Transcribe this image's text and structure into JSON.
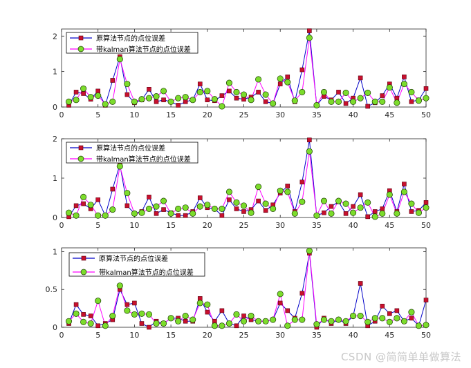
{
  "watermark": "CSDN @简简单单做算法",
  "colors": {
    "series_a_line": "#0000c8",
    "series_a_marker": "#c8102e",
    "series_b_line": "#ff00ff",
    "series_b_marker": "#7cdc2c",
    "axis": "#262626",
    "legend_box": "#000000"
  },
  "chart_data": [
    {
      "type": "line",
      "x": [
        1,
        2,
        3,
        4,
        5,
        6,
        7,
        8,
        9,
        10,
        11,
        12,
        13,
        14,
        15,
        16,
        17,
        18,
        19,
        20,
        21,
        22,
        23,
        24,
        25,
        26,
        27,
        28,
        29,
        30,
        31,
        32,
        33,
        34,
        35,
        36,
        37,
        38,
        39,
        40,
        41,
        42,
        43,
        44,
        45,
        46,
        47,
        48,
        49,
        50
      ],
      "xlim": [
        0,
        50
      ],
      "ylim": [
        0,
        2.2
      ],
      "xticks": [
        0,
        5,
        10,
        15,
        20,
        25,
        30,
        35,
        40,
        45,
        50
      ],
      "yticks": [
        0,
        1,
        2
      ],
      "legend_location": "top-left",
      "series": [
        {
          "name": "原算法节点的点位误差",
          "values": [
            0.05,
            0.42,
            0.38,
            0.22,
            0.45,
            0.05,
            0.75,
            1.42,
            0.35,
            0.12,
            0.2,
            0.5,
            0.15,
            0.2,
            0.15,
            0.05,
            0.15,
            0.2,
            0.65,
            0.2,
            0.18,
            0.32,
            0.45,
            0.25,
            0.22,
            0.28,
            0.42,
            0.15,
            0.1,
            0.65,
            0.85,
            0.15,
            1.05,
            2.15,
            0.05,
            0.3,
            0.2,
            0.42,
            0.1,
            0.25,
            0.82,
            0.02,
            0.12,
            0.32,
            0.65,
            0.25,
            0.85,
            0.15,
            0.2,
            0.52
          ]
        },
        {
          "name": "带kalman算法节点的点位误差",
          "values": [
            0.15,
            0.2,
            0.52,
            0.28,
            0.32,
            0.08,
            0.15,
            1.35,
            0.65,
            0.15,
            0.22,
            0.25,
            0.3,
            0.45,
            0.15,
            0.25,
            0.28,
            0.2,
            0.42,
            0.45,
            0.22,
            0.02,
            0.68,
            0.42,
            0.35,
            0.2,
            0.78,
            0.35,
            0.1,
            0.8,
            0.7,
            0.18,
            0.42,
            1.95,
            0.05,
            0.42,
            0.15,
            0.15,
            0.4,
            0.15,
            0.25,
            0.4,
            0.15,
            0.15,
            0.55,
            0.12,
            0.65,
            0.42,
            0.18,
            0.25
          ]
        }
      ]
    },
    {
      "type": "line",
      "x": [
        1,
        2,
        3,
        4,
        5,
        6,
        7,
        8,
        9,
        10,
        11,
        12,
        13,
        14,
        15,
        16,
        17,
        18,
        19,
        20,
        21,
        22,
        23,
        24,
        25,
        26,
        27,
        28,
        29,
        30,
        31,
        32,
        33,
        34,
        35,
        36,
        37,
        38,
        39,
        40,
        41,
        42,
        43,
        44,
        45,
        46,
        47,
        48,
        49,
        50
      ],
      "xlim": [
        0,
        50
      ],
      "ylim": [
        0,
        2
      ],
      "xticks": [
        0,
        5,
        10,
        15,
        20,
        25,
        30,
        35,
        40,
        45,
        50
      ],
      "yticks": [
        0,
        1,
        2
      ],
      "legend_location": "top-left",
      "series": [
        {
          "name": "原算法节点的点位误差",
          "values": [
            0.02,
            0.3,
            0.35,
            0.22,
            0.45,
            0.05,
            0.72,
            1.35,
            0.3,
            0.1,
            0.15,
            0.52,
            0.1,
            0.2,
            0.12,
            0.05,
            0.05,
            0.15,
            0.5,
            0.25,
            0.22,
            0.05,
            0.45,
            0.22,
            0.15,
            0.2,
            0.42,
            0.18,
            0.32,
            0.62,
            0.8,
            0.15,
            0.9,
            1.97,
            0.05,
            0.12,
            0.28,
            0.4,
            0.1,
            0.28,
            0.58,
            0.02,
            0.15,
            0.22,
            0.68,
            0.15,
            0.85,
            0.15,
            0.18,
            0.38
          ]
        },
        {
          "name": "带kalman算法节点的点位误差",
          "values": [
            0.12,
            0.05,
            0.52,
            0.32,
            0.05,
            0.05,
            0.2,
            1.3,
            0.62,
            0.1,
            0.12,
            0.22,
            0.28,
            0.42,
            0.1,
            0.22,
            0.25,
            0.1,
            0.28,
            0.32,
            0.22,
            0.22,
            0.65,
            0.38,
            0.3,
            0.12,
            0.78,
            0.35,
            0.22,
            0.68,
            0.65,
            0.1,
            0.4,
            1.68,
            0.05,
            0.42,
            0.1,
            0.42,
            0.35,
            0.12,
            0.25,
            0.38,
            0.02,
            0.1,
            0.58,
            0.1,
            0.65,
            0.35,
            0.12,
            0.25
          ]
        }
      ]
    },
    {
      "type": "line",
      "x": [
        1,
        2,
        3,
        4,
        5,
        6,
        7,
        8,
        9,
        10,
        11,
        12,
        13,
        14,
        15,
        16,
        17,
        18,
        19,
        20,
        21,
        22,
        23,
        24,
        25,
        26,
        27,
        28,
        29,
        30,
        31,
        32,
        33,
        34,
        35,
        36,
        37,
        38,
        39,
        40,
        41,
        42,
        43,
        44,
        45,
        46,
        47,
        48,
        49,
        50
      ],
      "xlim": [
        0,
        50
      ],
      "ylim": [
        0,
        1.05
      ],
      "xticks": [
        0,
        5,
        10,
        15,
        20,
        25,
        30,
        35,
        40,
        45,
        50
      ],
      "yticks": [
        0,
        0.5,
        1
      ],
      "legend_location": "top-left",
      "series": [
        {
          "name": "原算法节点的点位误差",
          "values": [
            0.05,
            0.3,
            0.17,
            0.15,
            0.02,
            0.05,
            0.1,
            0.5,
            0.3,
            0.32,
            0.05,
            0.0,
            0.08,
            0.05,
            0.12,
            0.12,
            0.08,
            0.08,
            0.38,
            0.2,
            0.08,
            0.22,
            0.05,
            0.02,
            0.15,
            0.1,
            0.08,
            0.08,
            0.1,
            0.32,
            0.22,
            0.12,
            0.45,
            0.98,
            0.0,
            0.12,
            0.05,
            0.1,
            0.05,
            0.15,
            0.58,
            0.02,
            0.08,
            0.28,
            0.18,
            0.22,
            0.08,
            0.12,
            0.02,
            0.36
          ]
        },
        {
          "name": "带kalman算法节点的点位误差",
          "values": [
            0.08,
            0.18,
            0.07,
            0.05,
            0.35,
            0.02,
            0.15,
            0.55,
            0.22,
            0.17,
            0.18,
            0.17,
            0.05,
            0.05,
            0.12,
            0.08,
            0.15,
            0.1,
            0.32,
            0.3,
            0.02,
            0.02,
            0.05,
            0.17,
            0.08,
            0.15,
            0.08,
            0.08,
            0.1,
            0.44,
            0.02,
            0.1,
            0.1,
            1.01,
            0.04,
            0.1,
            0.08,
            0.1,
            0.08,
            0.15,
            0.15,
            0.07,
            0.12,
            0.12,
            0.07,
            0.12,
            0.08,
            0.2,
            0.02,
            0.03
          ]
        }
      ]
    }
  ]
}
